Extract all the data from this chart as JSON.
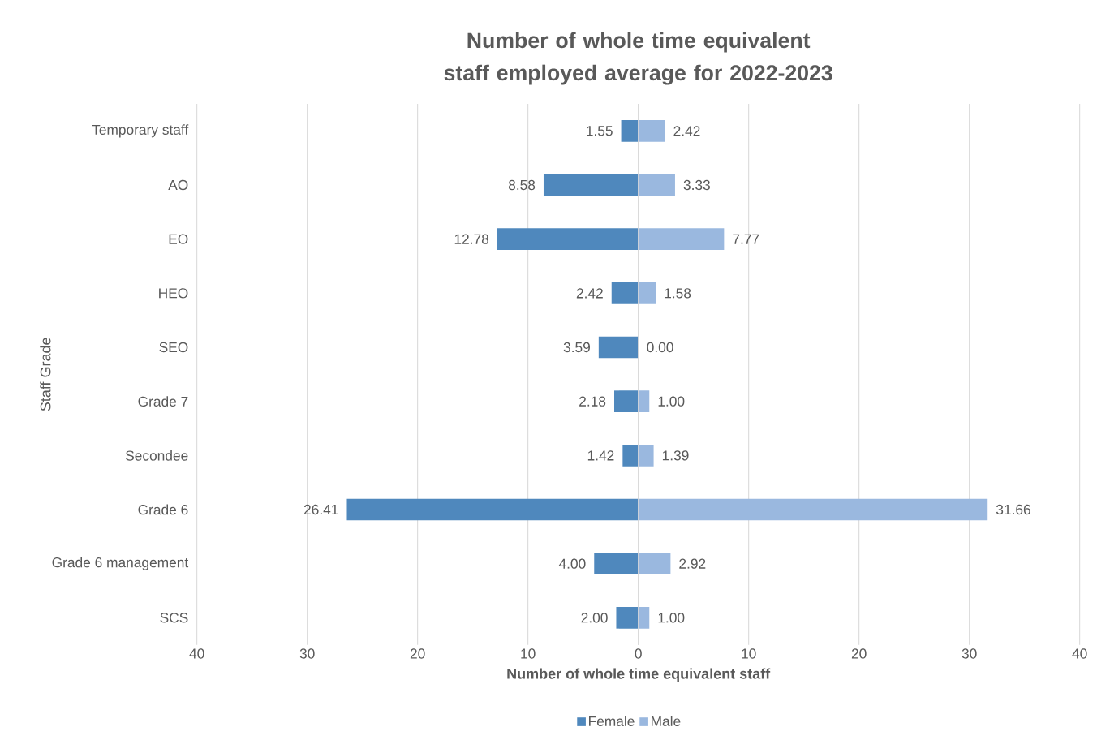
{
  "chart_data": [
    {
      "type": "bar",
      "orientation": "horizontal",
      "title": "Number of whole time equivalent staff employed average for 2022-2023",
      "xlabel": "Number of whole time equivalent staff",
      "ylabel": "Staff Grade",
      "categories": [
        "Temporary staff",
        "AO",
        "EO",
        "HEO",
        "SEO",
        "Grade 7",
        "Secondee",
        "Grade 6",
        "Grade 6 management",
        "SCS"
      ],
      "series": [
        {
          "name": "Female",
          "color": "#4f88bd",
          "values": [
            1.55,
            8.58,
            12.78,
            2.42,
            3.59,
            2.18,
            1.42,
            26.41,
            4.0,
            2.0
          ],
          "value_labels": [
            "1.55",
            "8.58",
            "12.78",
            "2.42",
            "3.59",
            "2.18",
            "1.42",
            "26.41",
            "4.00",
            "2.00"
          ]
        }
      ],
      "xlim": [
        40,
        0
      ],
      "xticks": [
        40,
        30,
        20,
        10,
        {
          "value": 0,
          "label": null
        }
      ],
      "grid": "x",
      "legend": "bottom"
    },
    {
      "type": "bar",
      "orientation": "horizontal",
      "categories": [
        null,
        null,
        null,
        null,
        null,
        null,
        null,
        null,
        null,
        null
      ],
      "series": [
        {
          "name": "Male",
          "color": "#9ab8df",
          "values": [
            2.42,
            3.33,
            7.77,
            1.58,
            0.0,
            1.0,
            1.39,
            31.66,
            2.92,
            1.0
          ],
          "value_labels": [
            "2.42",
            "3.33",
            "7.77",
            "1.58",
            "0.00",
            "1.00",
            "1.39",
            "31.66",
            "2.92",
            "1.00"
          ]
        }
      ],
      "xlim": [
        0,
        40
      ],
      "xticks": [
        0,
        10,
        20,
        30,
        40
      ],
      "grid": "x",
      "legend": "bottom",
      "tick_labels": "x"
    }
  ]
}
